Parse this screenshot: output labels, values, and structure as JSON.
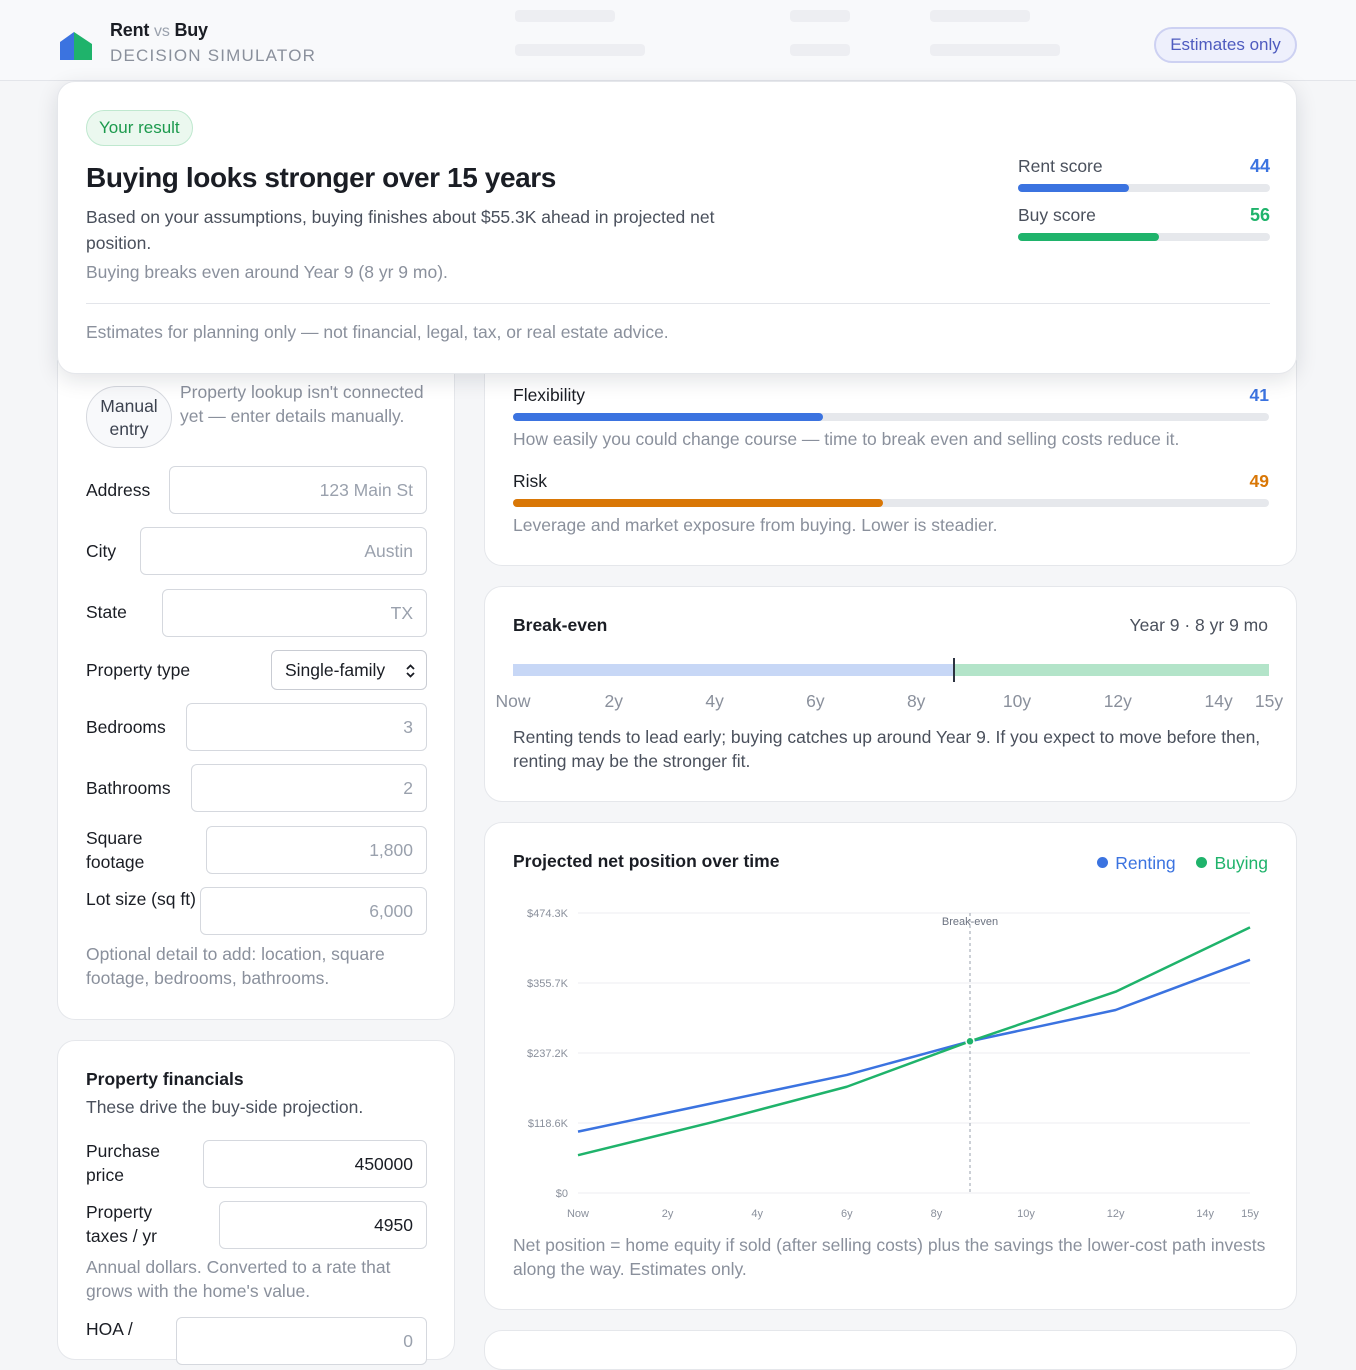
{
  "header": {
    "brand_rent": "Rent",
    "brand_vs": "vs",
    "brand_buy": "Buy",
    "subtitle": "DECISION SIMULATOR",
    "badge": "Estimates only"
  },
  "result": {
    "pill": "Your result",
    "title": "Buying looks stronger over 15 years",
    "description": "Based on your assumptions, buying finishes about $55.3K ahead in projected net position.",
    "breakeven": "Buying breaks even around Year 9 (8 yr 9 mo).",
    "disclaimer": "Estimates for planning only — not financial, legal, tax, or real estate advice.",
    "rent_score_label": "Rent score",
    "rent_score": "44",
    "rent_score_value": 44,
    "buy_score_label": "Buy score",
    "buy_score": "56",
    "buy_score_value": 56,
    "colors": {
      "rent": "#3b73e0",
      "buy": "#1fb36b",
      "risk": "#d97706"
    }
  },
  "property": {
    "manual_pill": "Manual entry",
    "lookup_note": "Property lookup isn't connected yet — enter details manually.",
    "fields": {
      "address": {
        "label": "Address",
        "placeholder": "123 Main St"
      },
      "city": {
        "label": "City",
        "placeholder": "Austin"
      },
      "state": {
        "label": "State",
        "placeholder": "TX"
      },
      "property_type": {
        "label": "Property type",
        "value": "Single-family"
      },
      "bedrooms": {
        "label": "Bedrooms",
        "placeholder": "3"
      },
      "bathrooms": {
        "label": "Bathrooms",
        "placeholder": "2"
      },
      "square_footage": {
        "label": "Square footage",
        "placeholder": "1,800"
      },
      "lot_size": {
        "label": "Lot size (sq ft)",
        "placeholder": "6,000"
      }
    },
    "optional_note": "Optional detail to add: location, square footage, bedrooms, bathrooms."
  },
  "financials": {
    "title": "Property financials",
    "subtitle": "These drive the buy-side projection.",
    "purchase_price": {
      "label": "Purchase price",
      "value": "450000"
    },
    "property_taxes": {
      "label": "Property taxes / yr",
      "value": "4950"
    },
    "taxes_note": "Annual dollars. Converted to a rate that grows with the home's value.",
    "hoa": {
      "label": "HOA /",
      "value": "0"
    }
  },
  "metrics": {
    "flexibility": {
      "label": "Flexibility",
      "value": "41",
      "score": 41,
      "description": "How easily you could change course — time to break even and selling costs reduce it."
    },
    "risk": {
      "label": "Risk",
      "value": "49",
      "score": 49,
      "description": "Leverage and market exposure from buying. Lower is steadier."
    }
  },
  "breakeven_card": {
    "title": "Break-even",
    "value": "Year 9 · 8 yr 9 mo",
    "breakeven_years": 8.75,
    "horizon_years": 15,
    "ticks": [
      "Now",
      "2y",
      "4y",
      "6y",
      "8y",
      "10y",
      "12y",
      "14y",
      "15y"
    ],
    "text": "Renting tends to lead early; buying catches up around Year 9. If you expect to move before then, renting may be the stronger fit."
  },
  "chart_data": {
    "type": "line",
    "title": "Projected net position over time",
    "x_tick_labels": [
      "Now",
      "2y",
      "4y",
      "6y",
      "8y",
      "10y",
      "12y",
      "14y",
      "15y"
    ],
    "x_tick_values": [
      0,
      2,
      4,
      6,
      8,
      10,
      12,
      14,
      15
    ],
    "y_tick_labels": [
      "$0",
      "$118.6K",
      "$237.2K",
      "$355.7K",
      "$474.3K"
    ],
    "ylim": [
      0,
      474.3
    ],
    "xlim": [
      0,
      15
    ],
    "x": [
      0,
      3,
      6,
      8.75,
      12,
      15
    ],
    "series": [
      {
        "name": "Renting",
        "color": "#3b73e0",
        "values": [
          104,
          152,
          200,
          257,
          310,
          395
        ]
      },
      {
        "name": "Buying",
        "color": "#1fb36b",
        "values": [
          64,
          120,
          180,
          257,
          341,
          450
        ]
      }
    ],
    "annotation": "Break-even",
    "annotation_x": 8.75,
    "grid": true,
    "legend": "top-right",
    "footnote": "Net position = home equity if sold (after selling costs) plus the savings the lower-cost path invests along the way. Estimates only."
  }
}
